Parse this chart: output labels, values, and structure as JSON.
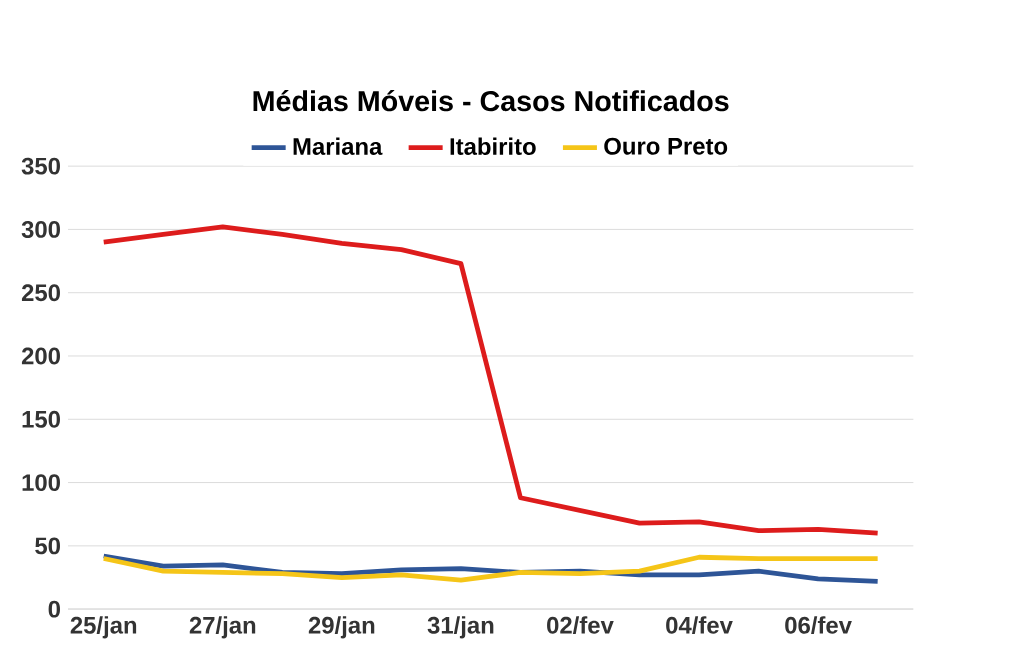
{
  "chart_data": {
    "type": "line",
    "title": "Médias Móveis - Casos Notificados",
    "categories": [
      "25/jan",
      null,
      "27/jan",
      null,
      "29/jan",
      null,
      "31/jan",
      null,
      "02/fev",
      null,
      "04/fev",
      null,
      "06/fev",
      null
    ],
    "series": [
      {
        "name": "Mariana",
        "color": "#2e5597",
        "values": [
          42,
          34,
          35,
          29,
          28,
          31,
          32,
          29,
          30,
          27,
          27,
          30,
          24,
          22
        ]
      },
      {
        "name": "Itabirito",
        "color": "#dd1c1c",
        "values": [
          290,
          296,
          302,
          296,
          289,
          284,
          273,
          88,
          78,
          68,
          69,
          62,
          63,
          60
        ]
      },
      {
        "name": "Ouro Preto",
        "color": "#f5c518",
        "values": [
          40,
          30,
          29,
          28,
          25,
          27,
          23,
          29,
          28,
          30,
          41,
          40,
          40,
          40
        ]
      }
    ],
    "ylim": [
      0,
      350
    ],
    "yticks": [
      0,
      50,
      100,
      150,
      200,
      250,
      300,
      350
    ],
    "grid": "y",
    "legend": "top",
    "marker": "none",
    "line_style": "solid"
  }
}
